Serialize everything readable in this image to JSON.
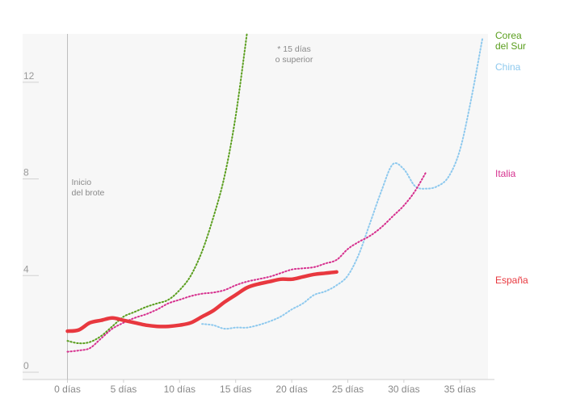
{
  "chart_data": {
    "type": "line",
    "title": "",
    "xlabel": "",
    "ylabel": "",
    "xlim": [
      -4,
      37.5
    ],
    "ylim": [
      -0.3,
      14
    ],
    "x_ticks": [
      0,
      5,
      10,
      15,
      20,
      25,
      30,
      35
    ],
    "x_tick_labels": [
      "0 días",
      "5 días",
      "10 días",
      "15 días",
      "20 días",
      "25 días",
      "30 días",
      "35 días"
    ],
    "y_ticks": [
      0,
      4,
      8,
      12
    ],
    "y_tick_labels": [
      "0",
      "4",
      "8",
      "12"
    ],
    "grid": false,
    "background": "#f7f7f7",
    "annotations": {
      "outbreak_line": "Inicio del brote",
      "outbreak_lines": [
        "Inicio",
        "del brote"
      ],
      "note_lines": [
        "* 15 días",
        "o superior"
      ]
    },
    "series": [
      {
        "name": "Corea del Sur",
        "label_lines": [
          "Corea",
          "del Sur"
        ],
        "color": "#5a9e1e",
        "style": "dotted",
        "x": [
          0,
          1,
          2,
          3,
          4,
          5,
          6,
          7,
          8,
          9,
          10,
          11,
          12,
          13,
          14,
          15,
          16
        ],
        "y": [
          1.3,
          1.2,
          1.25,
          1.5,
          1.9,
          2.3,
          2.5,
          2.7,
          2.85,
          3.0,
          3.4,
          4.0,
          5.0,
          6.4,
          8.1,
          10.6,
          14.0
        ]
      },
      {
        "name": "China",
        "label_lines": [
          "China"
        ],
        "color": "#8ec9ee",
        "style": "dotted",
        "x": [
          12,
          13,
          14,
          15,
          16,
          17,
          18,
          19,
          20,
          21,
          22,
          23,
          24,
          25,
          26,
          27,
          28,
          29,
          30,
          31,
          32,
          33,
          34,
          35,
          36,
          37
        ],
        "y": [
          2.0,
          1.95,
          1.8,
          1.85,
          1.85,
          1.95,
          2.1,
          2.3,
          2.6,
          2.85,
          3.2,
          3.35,
          3.6,
          4.0,
          4.9,
          6.2,
          7.5,
          8.6,
          8.4,
          7.7,
          7.6,
          7.7,
          8.1,
          9.2,
          11.3,
          13.8
        ]
      },
      {
        "name": "Italia",
        "label_lines": [
          "Italia"
        ],
        "color": "#d6308e",
        "style": "dotted",
        "x": [
          0,
          1,
          2,
          3,
          4,
          5,
          6,
          7,
          8,
          9,
          10,
          11,
          12,
          13,
          14,
          15,
          16,
          17,
          18,
          19,
          20,
          21,
          22,
          23,
          24,
          25,
          26,
          27,
          28,
          29,
          30,
          31,
          32
        ],
        "y": [
          0.85,
          0.9,
          1.0,
          1.4,
          1.8,
          2.05,
          2.25,
          2.4,
          2.6,
          2.85,
          3.0,
          3.15,
          3.25,
          3.3,
          3.4,
          3.6,
          3.75,
          3.85,
          3.95,
          4.1,
          4.25,
          4.3,
          4.35,
          4.5,
          4.65,
          5.1,
          5.4,
          5.65,
          6.0,
          6.45,
          6.9,
          7.5,
          8.3
        ]
      },
      {
        "name": "España",
        "label_lines": [
          "España"
        ],
        "color": "#e8383f",
        "style": "solid",
        "x": [
          0,
          1,
          2,
          3,
          4,
          5,
          6,
          7,
          8,
          9,
          10,
          11,
          12,
          13,
          14,
          15,
          16,
          17,
          18,
          19,
          20,
          21,
          22,
          23,
          24
        ],
        "y": [
          1.7,
          1.75,
          2.05,
          2.15,
          2.25,
          2.15,
          2.05,
          1.95,
          1.9,
          1.9,
          1.95,
          2.05,
          2.3,
          2.55,
          2.9,
          3.2,
          3.5,
          3.65,
          3.75,
          3.85,
          3.85,
          3.95,
          4.05,
          4.1,
          4.15
        ]
      }
    ]
  }
}
